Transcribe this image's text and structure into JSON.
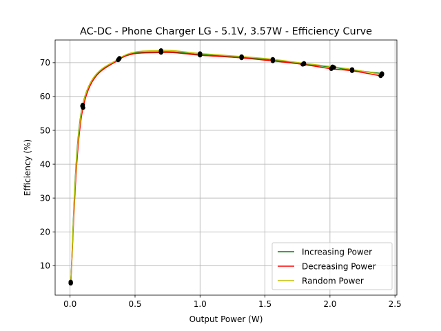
{
  "chart_data": {
    "type": "line",
    "title": "AC-DC - Phone Charger LG - 5.1V, 3.57W - Efficiency Curve",
    "xlabel": "Output Power (W)",
    "ylabel": "Efficiency (%)",
    "xlim": [
      -0.115,
      2.515
    ],
    "ylim": [
      1.3,
      76.7
    ],
    "xticks": [
      0.0,
      0.5,
      1.0,
      1.5,
      2.0,
      2.5
    ],
    "xtick_labels": [
      "0.0",
      "0.5",
      "1.0",
      "1.5",
      "2.0",
      "2.5"
    ],
    "yticks": [
      10,
      20,
      30,
      40,
      50,
      60,
      70
    ],
    "ytick_labels": [
      "10",
      "20",
      "30",
      "40",
      "50",
      "60",
      "70"
    ],
    "grid": true,
    "legend_position": "lower-right",
    "series": [
      {
        "name": "Increasing Power",
        "color": "#008000",
        "x": [
          0.005,
          0.095,
          0.375,
          0.7,
          1.0,
          1.32,
          1.56,
          1.8,
          2.03,
          2.17,
          2.4
        ],
        "y": [
          5.0,
          57.2,
          71.0,
          73.2,
          72.4,
          71.6,
          70.8,
          69.6,
          68.6,
          67.8,
          66.8
        ]
      },
      {
        "name": "Decreasing Power",
        "color": "#ff0000",
        "x": [
          0.005,
          0.1,
          0.37,
          0.7,
          1.0,
          1.32,
          1.56,
          1.79,
          2.01,
          2.17,
          2.39
        ],
        "y": [
          4.8,
          56.7,
          70.8,
          73.0,
          72.2,
          71.4,
          70.5,
          69.5,
          68.2,
          67.6,
          66.1
        ]
      },
      {
        "name": "Random Power",
        "color": "#bfbf00",
        "x": [
          0.005,
          0.098,
          0.38,
          0.7,
          1.0,
          1.32,
          1.56,
          1.8,
          2.02,
          2.17,
          2.4
        ],
        "y": [
          5.2,
          57.5,
          71.3,
          73.6,
          72.7,
          71.8,
          71.0,
          69.8,
          68.8,
          68.0,
          66.5
        ]
      }
    ]
  }
}
